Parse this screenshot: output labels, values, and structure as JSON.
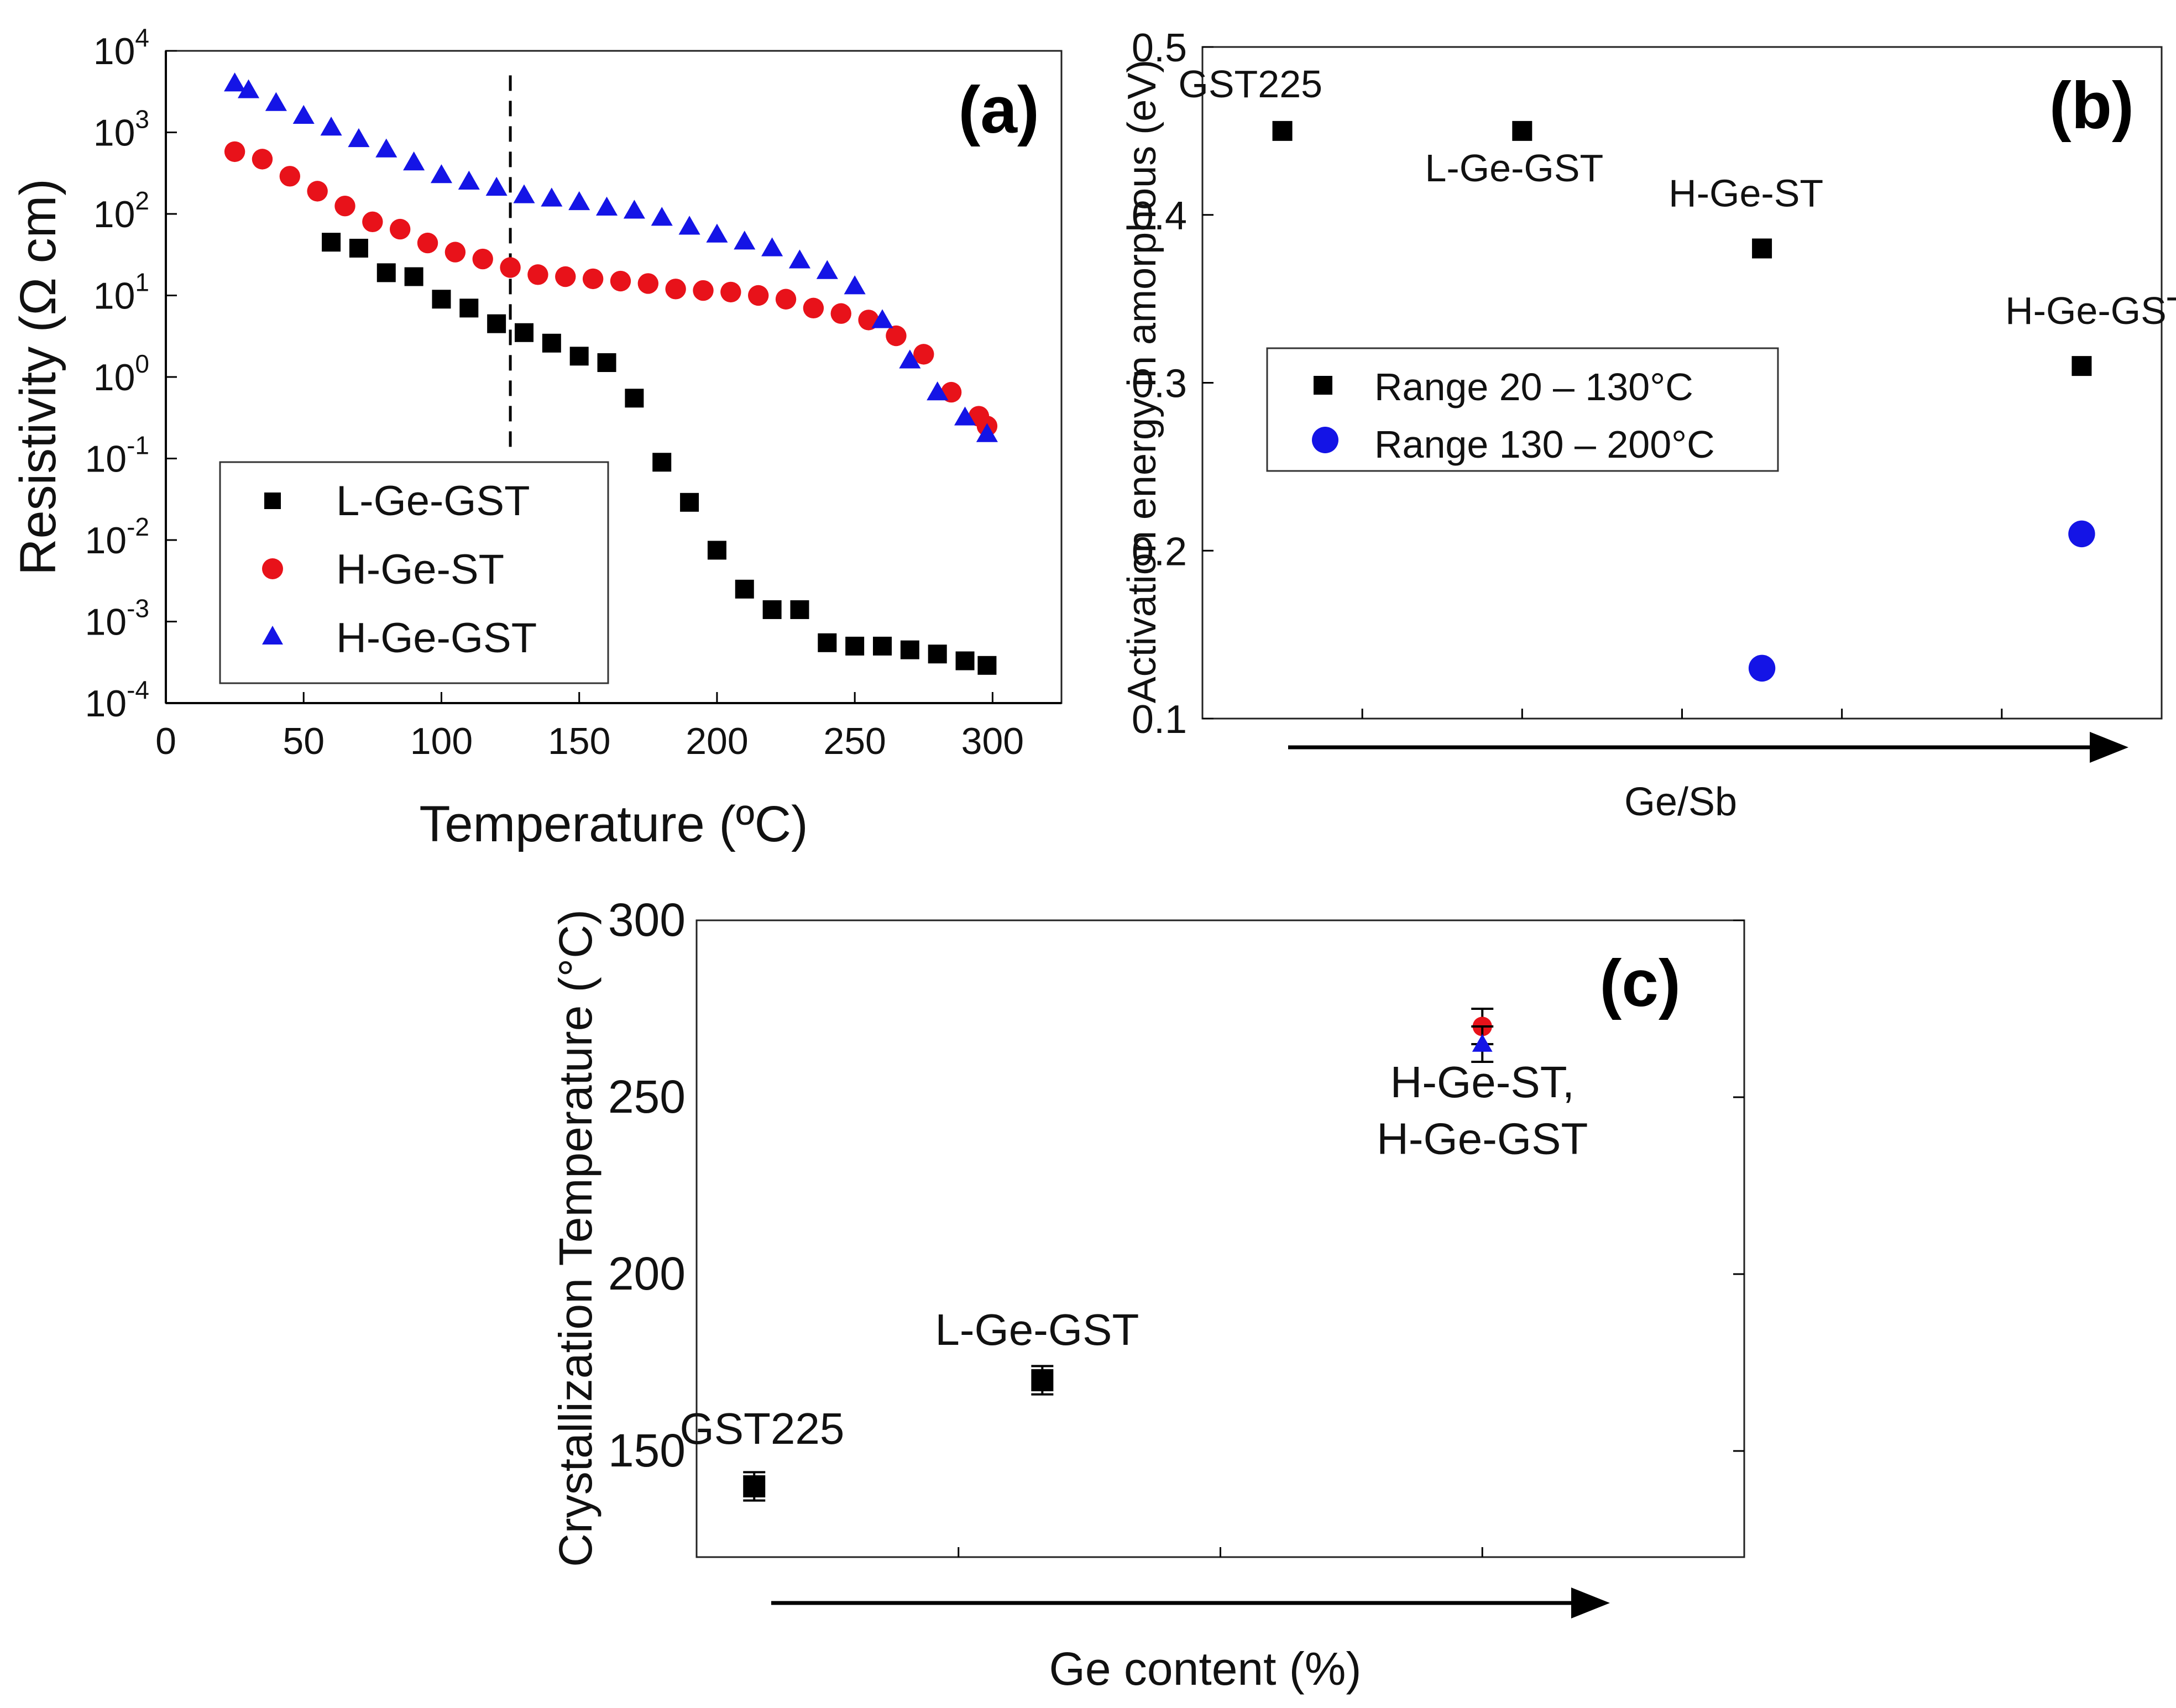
{
  "colors": {
    "black": "#000000",
    "red": "#e8121a",
    "blue": "#1414e6"
  },
  "chart_data": [
    {
      "type": "scatter",
      "panel": "(a)",
      "xlabel": "Temperature (ºC)",
      "ylabel": "Resistivity (Ω cm)",
      "yscale": "log",
      "xlim": [
        0,
        325
      ],
      "ylim": [
        0.0001,
        10000
      ],
      "xticks": [
        0,
        50,
        100,
        150,
        200,
        250,
        300
      ],
      "yticks": [
        {
          "base": "10",
          "exp": "4"
        },
        {
          "base": "10",
          "exp": "3"
        },
        {
          "base": "10",
          "exp": "2"
        },
        {
          "base": "10",
          "exp": "1"
        },
        {
          "base": "10",
          "exp": "0"
        },
        {
          "base": "10",
          "exp": "-1"
        },
        {
          "base": "10",
          "exp": "-2"
        },
        {
          "base": "10",
          "exp": "-3"
        },
        {
          "base": "10",
          "exp": "-4"
        }
      ],
      "vline_x": 125,
      "legend_position": "bottom-left",
      "series": [
        {
          "name": "L-Ge-GST",
          "marker": "square",
          "color": "#000000",
          "x": [
            60,
            70,
            80,
            90,
            100,
            110,
            120,
            130,
            140,
            150,
            160,
            170,
            180,
            190,
            200,
            210,
            220,
            230,
            240,
            250,
            260,
            270,
            280,
            290,
            298
          ],
          "y": [
            45,
            38,
            19,
            17,
            9,
            7,
            4.5,
            3.5,
            2.6,
            1.8,
            1.5,
            0.55,
            0.09,
            0.029,
            0.0075,
            0.0025,
            0.0014,
            0.0014,
            0.00055,
            0.0005,
            0.0005,
            0.00045,
            0.0004,
            0.00033,
            0.00029
          ]
        },
        {
          "name": "H-Ge-ST",
          "marker": "circle",
          "color": "#e8121a",
          "x": [
            25,
            35,
            45,
            55,
            65,
            75,
            85,
            95,
            105,
            115,
            125,
            135,
            145,
            155,
            165,
            175,
            185,
            195,
            205,
            215,
            225,
            235,
            245,
            255,
            265,
            275,
            285,
            295,
            298
          ],
          "y": [
            580,
            470,
            290,
            190,
            125,
            80,
            65,
            44,
            34,
            28,
            22,
            18,
            17,
            16,
            15,
            14,
            12,
            11.5,
            11,
            10,
            9,
            7,
            6,
            5,
            3.2,
            1.9,
            0.65,
            0.33,
            0.25
          ]
        },
        {
          "name": "H-Ge-GST",
          "marker": "triangle",
          "color": "#1414e6",
          "x": [
            25,
            30,
            40,
            50,
            60,
            70,
            80,
            90,
            100,
            110,
            120,
            130,
            140,
            150,
            160,
            170,
            180,
            190,
            200,
            210,
            220,
            230,
            240,
            250,
            260,
            270,
            280,
            290,
            298
          ],
          "y": [
            4000,
            3300,
            2300,
            1600,
            1150,
            830,
            620,
            430,
            300,
            250,
            210,
            170,
            155,
            140,
            120,
            110,
            90,
            70,
            56,
            46,
            38,
            27,
            20,
            13,
            5,
            1.6,
            0.65,
            0.32,
            0.2
          ]
        }
      ]
    },
    {
      "type": "scatter",
      "panel": "(b)",
      "xlabel": "Ge/Sb",
      "ylabel": "Activation energy in amorphous (eV)",
      "ylim": [
        0.1,
        0.5
      ],
      "yticks": [
        "0.1",
        "0.2",
        "0.3",
        "0.4",
        "0.5"
      ],
      "xlim": [
        0,
        6
      ],
      "legend_position": "middle-left",
      "series": [
        {
          "name": "Range 20 – 130°C",
          "marker": "square",
          "color": "#000000",
          "x": [
            0.5,
            2,
            3.5,
            5.5
          ],
          "y": [
            0.45,
            0.45,
            0.38,
            0.31
          ]
        },
        {
          "name": "Range 130 – 200°C",
          "marker": "circle",
          "color": "#1414e6",
          "x": [
            3.5,
            5.5
          ],
          "y": [
            0.13,
            0.21
          ]
        }
      ],
      "annotations": [
        {
          "text": "GST225",
          "x": 0.3,
          "y": 0.47
        },
        {
          "text": "L-Ge-GST",
          "x": 1.95,
          "y": 0.42
        },
        {
          "text": "H-Ge-ST",
          "x": 3.4,
          "y": 0.405
        },
        {
          "text": "H-Ge-GST",
          "x": 5.6,
          "y": 0.335
        }
      ]
    },
    {
      "type": "scatter",
      "panel": "(c)",
      "xlabel": "Ge content (%)",
      "ylabel": "Crystallization Temperature (°C)",
      "ylim": [
        120,
        300
      ],
      "yticks": [
        "150",
        "200",
        "250",
        "300"
      ],
      "xlim": [
        0,
        4
      ],
      "series": [
        {
          "name": "black",
          "marker": "square",
          "color": "#000000",
          "x": [
            0.22,
            1.32
          ],
          "y": [
            140,
            170
          ],
          "err": [
            4,
            4
          ]
        },
        {
          "name": "H-Ge-ST",
          "marker": "circle",
          "color": "#e8121a",
          "x": [
            3.0
          ],
          "y": [
            270
          ],
          "err": [
            5
          ]
        },
        {
          "name": "H-Ge-GST",
          "marker": "triangle",
          "color": "#1414e6",
          "x": [
            3.0
          ],
          "y": [
            265
          ],
          "err": [
            5
          ]
        }
      ],
      "annotations": [
        {
          "text": "GST225",
          "x": 0.25,
          "y": 152
        },
        {
          "text": "L-Ge-GST",
          "x": 1.3,
          "y": 180
        },
        {
          "text": "H-Ge-ST,",
          "x": 3.0,
          "y": 250
        },
        {
          "text": "H-Ge-GST",
          "x": 3.0,
          "y": 234
        }
      ]
    }
  ]
}
